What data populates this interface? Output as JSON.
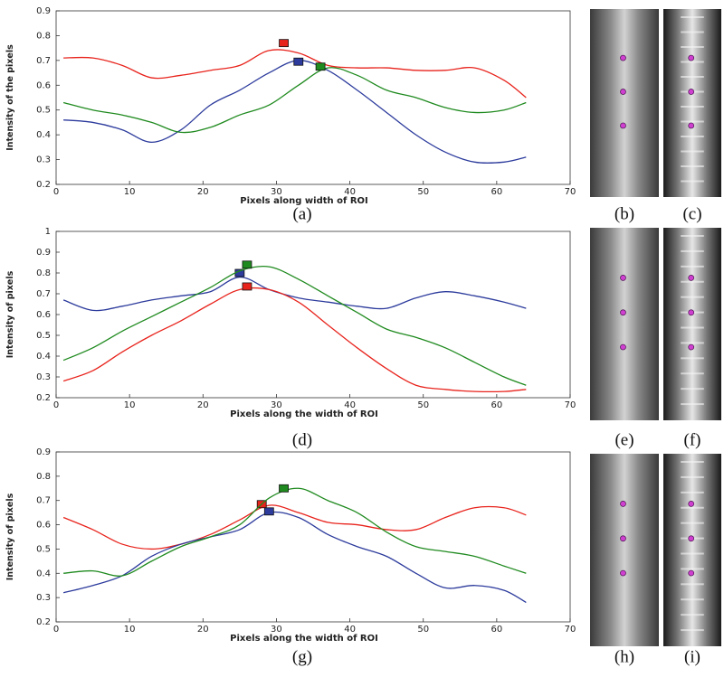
{
  "chart_data": [
    {
      "type": "line",
      "caption": "(a)",
      "xlabel": "Pixels along width of ROI",
      "ylabel": "Intensity of the pixels",
      "x": [
        1,
        5,
        9,
        13,
        17,
        21,
        25,
        29,
        33,
        37,
        41,
        45,
        49,
        53,
        57,
        61,
        64
      ],
      "xlim": [
        0,
        70
      ],
      "xticks": [
        0,
        10,
        20,
        30,
        40,
        50,
        60,
        70
      ],
      "ylim": [
        0.2,
        0.9
      ],
      "yticks": [
        0.2,
        0.3,
        0.4,
        0.5,
        0.6,
        0.7,
        0.8,
        0.9
      ],
      "series": [
        {
          "color": "#e8231c",
          "values": [
            0.71,
            0.71,
            0.68,
            0.63,
            0.64,
            0.66,
            0.68,
            0.74,
            0.73,
            0.68,
            0.67,
            0.67,
            0.66,
            0.66,
            0.67,
            0.62,
            0.55
          ],
          "peak": {
            "x": 31,
            "y": 0.77
          }
        },
        {
          "color": "#2c3b9c",
          "values": [
            0.46,
            0.45,
            0.42,
            0.37,
            0.42,
            0.52,
            0.58,
            0.65,
            0.7,
            0.66,
            0.58,
            0.49,
            0.4,
            0.33,
            0.29,
            0.29,
            0.31
          ],
          "peak": {
            "x": 33,
            "y": 0.695
          }
        },
        {
          "color": "#1f8a1f",
          "values": [
            0.53,
            0.5,
            0.48,
            0.45,
            0.41,
            0.43,
            0.48,
            0.52,
            0.6,
            0.67,
            0.64,
            0.58,
            0.55,
            0.51,
            0.49,
            0.5,
            0.53
          ],
          "peak": {
            "x": 36,
            "y": 0.675
          }
        }
      ]
    },
    {
      "type": "line",
      "caption": "(d)",
      "xlabel": "Pixels along the width of ROI",
      "ylabel": "Intensity of pixels",
      "x": [
        1,
        5,
        9,
        13,
        17,
        21,
        25,
        29,
        33,
        37,
        41,
        45,
        49,
        53,
        57,
        61,
        64
      ],
      "xlim": [
        0,
        70
      ],
      "xticks": [
        0,
        10,
        20,
        30,
        40,
        50,
        60,
        70
      ],
      "ylim": [
        0.2,
        1
      ],
      "yticks": [
        0.2,
        0.3,
        0.4,
        0.5,
        0.6,
        0.7,
        0.8,
        0.9,
        1
      ],
      "series": [
        {
          "color": "#2c3b9c",
          "values": [
            0.67,
            0.62,
            0.64,
            0.67,
            0.69,
            0.71,
            0.78,
            0.72,
            0.68,
            0.66,
            0.64,
            0.63,
            0.68,
            0.71,
            0.69,
            0.66,
            0.63
          ],
          "peak": {
            "x": 25,
            "y": 0.8
          }
        },
        {
          "color": "#1f8a1f",
          "values": [
            0.38,
            0.44,
            0.52,
            0.59,
            0.66,
            0.73,
            0.81,
            0.83,
            0.77,
            0.69,
            0.61,
            0.53,
            0.49,
            0.44,
            0.37,
            0.3,
            0.26
          ],
          "peak": {
            "x": 26,
            "y": 0.84
          }
        },
        {
          "color": "#e8231c",
          "values": [
            0.28,
            0.33,
            0.42,
            0.5,
            0.57,
            0.65,
            0.72,
            0.72,
            0.66,
            0.55,
            0.44,
            0.34,
            0.26,
            0.24,
            0.23,
            0.23,
            0.24
          ],
          "peak": {
            "x": 26,
            "y": 0.735
          }
        }
      ]
    },
    {
      "type": "line",
      "caption": "(g)",
      "xlabel": "Pixels along the width of ROI",
      "ylabel": "Intensity of pixels",
      "x": [
        1,
        5,
        9,
        13,
        17,
        21,
        25,
        29,
        33,
        37,
        41,
        45,
        49,
        53,
        57,
        61,
        64
      ],
      "xlim": [
        0,
        70
      ],
      "xticks": [
        0,
        10,
        20,
        30,
        40,
        50,
        60,
        70
      ],
      "ylim": [
        0.2,
        0.9
      ],
      "yticks": [
        0.2,
        0.3,
        0.4,
        0.5,
        0.6,
        0.7,
        0.8,
        0.9
      ],
      "series": [
        {
          "color": "#e8231c",
          "values": [
            0.63,
            0.58,
            0.52,
            0.5,
            0.52,
            0.56,
            0.62,
            0.68,
            0.65,
            0.61,
            0.6,
            0.58,
            0.58,
            0.63,
            0.67,
            0.67,
            0.64
          ],
          "peak": {
            "x": 28,
            "y": 0.685
          }
        },
        {
          "color": "#2c3b9c",
          "values": [
            0.32,
            0.35,
            0.39,
            0.47,
            0.52,
            0.55,
            0.58,
            0.65,
            0.63,
            0.56,
            0.51,
            0.47,
            0.4,
            0.34,
            0.35,
            0.33,
            0.28
          ],
          "peak": {
            "x": 29,
            "y": 0.655
          }
        },
        {
          "color": "#1f8a1f",
          "values": [
            0.4,
            0.41,
            0.39,
            0.45,
            0.51,
            0.55,
            0.6,
            0.71,
            0.75,
            0.7,
            0.65,
            0.57,
            0.51,
            0.49,
            0.47,
            0.43,
            0.4
          ],
          "peak": {
            "x": 31,
            "y": 0.75
          }
        }
      ]
    }
  ],
  "images": [
    {
      "caption": "(b)"
    },
    {
      "caption": "(c)"
    },
    {
      "caption": "(e)"
    },
    {
      "caption": "(f)"
    },
    {
      "caption": "(h)"
    },
    {
      "caption": "(i)"
    }
  ]
}
